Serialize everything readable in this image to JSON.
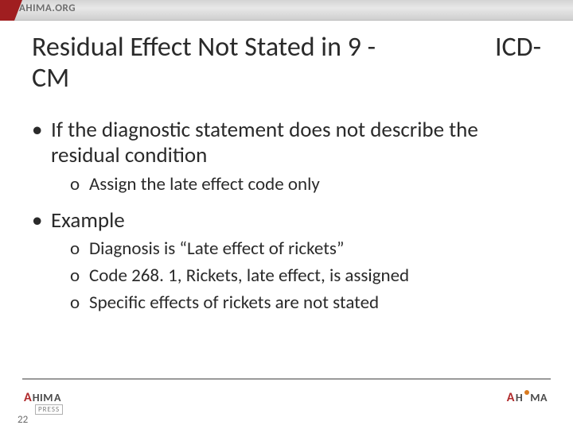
{
  "header": {
    "site_label": "AHIMA.ORG"
  },
  "title": {
    "left": "Residual Effect Not Stated in 9 -CM",
    "right": "ICD-"
  },
  "bullets": [
    {
      "text": "If the diagnostic statement does not describe the residual condition",
      "children": [
        {
          "text": "Assign the late effect code only"
        }
      ]
    },
    {
      "text": "Example",
      "children": [
        {
          "text": "Diagnosis is “Late effect of rickets”"
        },
        {
          "text": "Code 268. 1, Rickets, late effect, is assigned"
        },
        {
          "text": "Specific effects of rickets are not stated"
        }
      ]
    }
  ],
  "footer": {
    "press_label": "PRESS",
    "page_number": "22"
  },
  "colors": {
    "brand_red": "#a01e20",
    "text": "#2a2a2a",
    "rule": "#9a9a9a",
    "accent_orange": "#d97a1f"
  },
  "typography": {
    "title_fontsize_pt": 26,
    "body_l1_fontsize_pt": 20,
    "body_l2_fontsize_pt": 17
  }
}
